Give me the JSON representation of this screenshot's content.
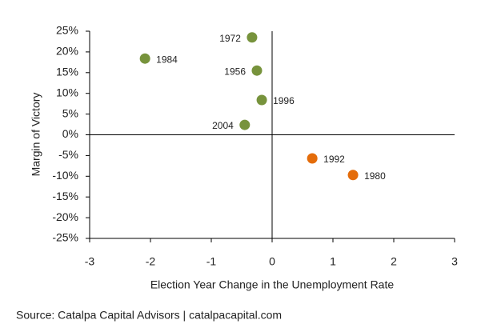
{
  "chart_data": {
    "type": "scatter",
    "x_label": "Election Year Change in the Unemployment Rate",
    "y_label": "Margin of  Victory",
    "source": "Source: Catalpa Capital Advisors | catalpacapital.com",
    "xlim": [
      -3,
      3
    ],
    "xticks": [
      -3,
      -2,
      -1,
      0,
      1,
      2,
      3
    ],
    "ylim": [
      -25,
      25
    ],
    "yticks": [
      {
        "value": 25,
        "label": "25%"
      },
      {
        "value": 20,
        "label": "20%"
      },
      {
        "value": 15,
        "label": "15%"
      },
      {
        "value": 10,
        "label": "10%"
      },
      {
        "value": 5,
        "label": "5%"
      },
      {
        "value": 0,
        "label": "0%"
      },
      {
        "value": -5,
        "label": "-5%"
      },
      {
        "value": -10,
        "label": "-10%"
      },
      {
        "value": -15,
        "label": "-15%"
      },
      {
        "value": -20,
        "label": "-20%"
      },
      {
        "value": -25,
        "label": "-25%"
      }
    ],
    "series": [
      {
        "color": "#77933c",
        "x": [
          -0.33,
          -2.09,
          -0.25,
          -0.17,
          -0.45
        ],
        "values": [
          23.5,
          18.4,
          15.5,
          8.4,
          2.4
        ],
        "labels": [
          "1972",
          "1984",
          "1956",
          "1996",
          "2004"
        ]
      },
      {
        "color": "#e46c0a",
        "x": [
          0.66,
          1.33
        ],
        "values": [
          -5.7,
          -9.7
        ],
        "labels": [
          "1992",
          "1980"
        ]
      }
    ]
  }
}
